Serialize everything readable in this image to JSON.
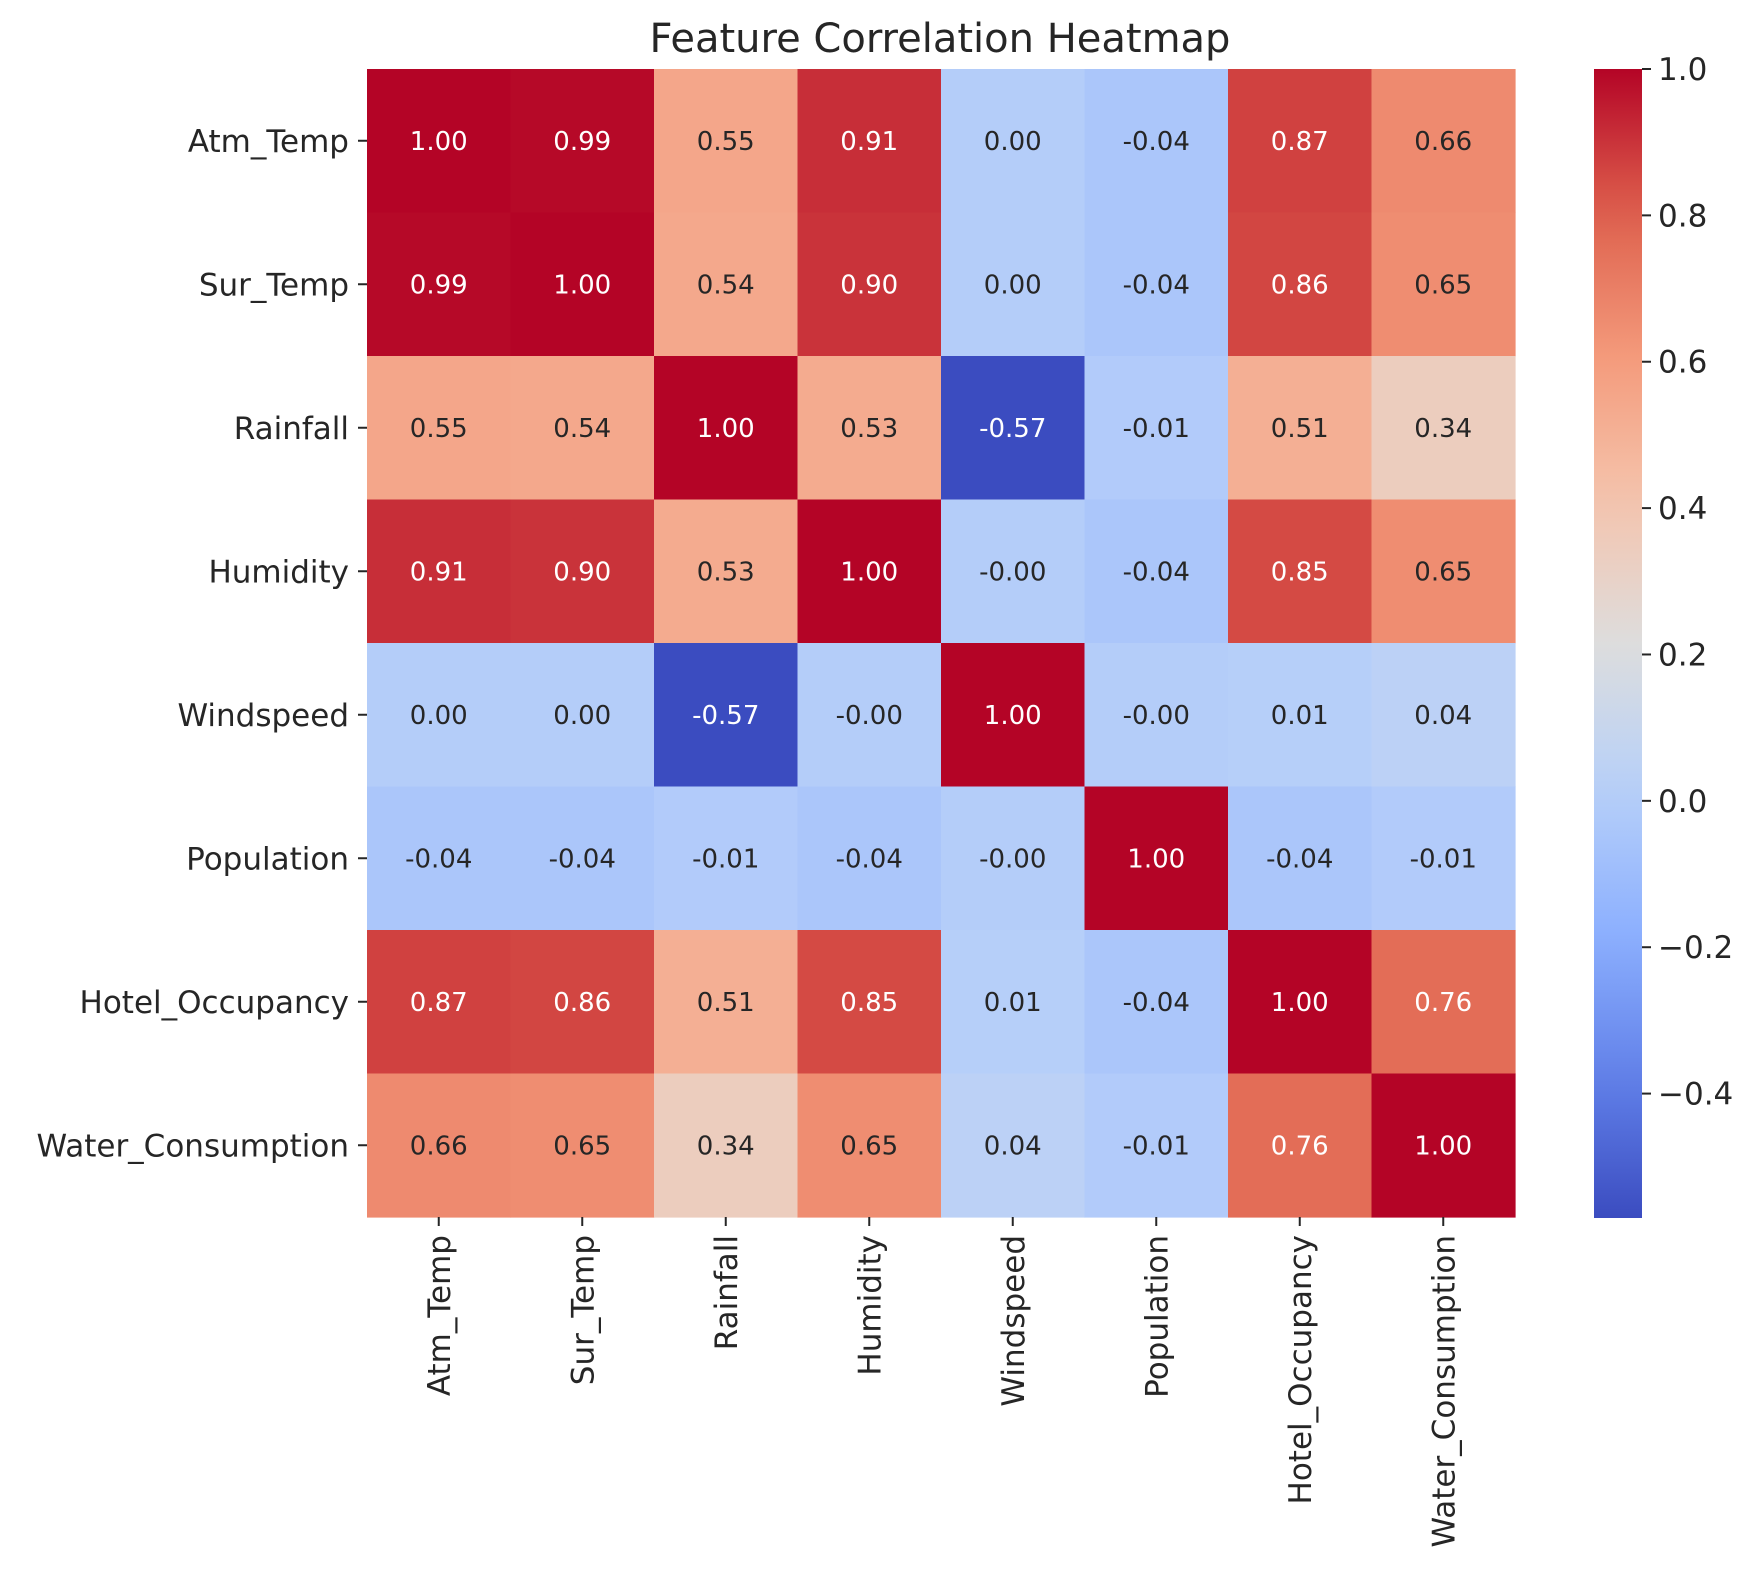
{
  "chart_data": {
    "type": "heatmap",
    "title": "Feature Correlation Heatmap",
    "xlabel": "",
    "ylabel": "",
    "row_labels": [
      "Atm_Temp",
      "Sur_Temp",
      "Rainfall",
      "Humidity",
      "Windspeed",
      "Population",
      "Hotel_Occupancy",
      "Water_Consumption"
    ],
    "col_labels": [
      "Atm_Temp",
      "Sur_Temp",
      "Rainfall",
      "Humidity",
      "Windspeed",
      "Population",
      "Hotel_Occupancy",
      "Water_Consumption"
    ],
    "values": [
      [
        1.0,
        0.99,
        0.55,
        0.91,
        0.0,
        -0.04,
        0.87,
        0.66
      ],
      [
        0.99,
        1.0,
        0.54,
        0.9,
        0.0,
        -0.04,
        0.86,
        0.65
      ],
      [
        0.55,
        0.54,
        1.0,
        0.53,
        -0.57,
        -0.01,
        0.51,
        0.34
      ],
      [
        0.91,
        0.9,
        0.53,
        1.0,
        -0.0,
        -0.04,
        0.85,
        0.65
      ],
      [
        0.0,
        0.0,
        -0.57,
        -0.0,
        1.0,
        -0.0,
        0.01,
        0.04
      ],
      [
        -0.04,
        -0.04,
        -0.01,
        -0.04,
        -0.0,
        1.0,
        -0.04,
        -0.01
      ],
      [
        0.87,
        0.86,
        0.51,
        0.85,
        0.01,
        -0.04,
        1.0,
        0.76
      ],
      [
        0.66,
        0.65,
        0.34,
        0.65,
        0.04,
        -0.01,
        0.76,
        1.0
      ]
    ],
    "annotations": [
      [
        "1.00",
        "0.99",
        "0.55",
        "0.91",
        "0.00",
        "-0.04",
        "0.87",
        "0.66"
      ],
      [
        "0.99",
        "1.00",
        "0.54",
        "0.90",
        "0.00",
        "-0.04",
        "0.86",
        "0.65"
      ],
      [
        "0.55",
        "0.54",
        "1.00",
        "0.53",
        "-0.57",
        "-0.01",
        "0.51",
        "0.34"
      ],
      [
        "0.91",
        "0.90",
        "0.53",
        "1.00",
        "-0.00",
        "-0.04",
        "0.85",
        "0.65"
      ],
      [
        "0.00",
        "0.00",
        "-0.57",
        "-0.00",
        "1.00",
        "-0.00",
        "0.01",
        "0.04"
      ],
      [
        "-0.04",
        "-0.04",
        "-0.01",
        "-0.04",
        "-0.00",
        "1.00",
        "-0.04",
        "-0.01"
      ],
      [
        "0.87",
        "0.86",
        "0.51",
        "0.85",
        "0.01",
        "-0.04",
        "1.00",
        "0.76"
      ],
      [
        "0.66",
        "0.65",
        "0.34",
        "0.65",
        "0.04",
        "-0.01",
        "0.76",
        "1.00"
      ]
    ],
    "colormap": "coolwarm",
    "vmin": -0.57,
    "vmax": 1.0,
    "colorbar": {
      "ticks": [
        1.0,
        0.8,
        0.6,
        0.4,
        0.2,
        0.0,
        -0.2,
        -0.4
      ],
      "tick_labels": [
        "1.0",
        "0.8",
        "0.6",
        "0.4",
        "0.2",
        "0.0",
        "−0.2",
        "−0.4"
      ],
      "position": "right"
    },
    "grid": false,
    "text_colors": {
      "dark": "#262626",
      "light": "#ffffff"
    }
  }
}
